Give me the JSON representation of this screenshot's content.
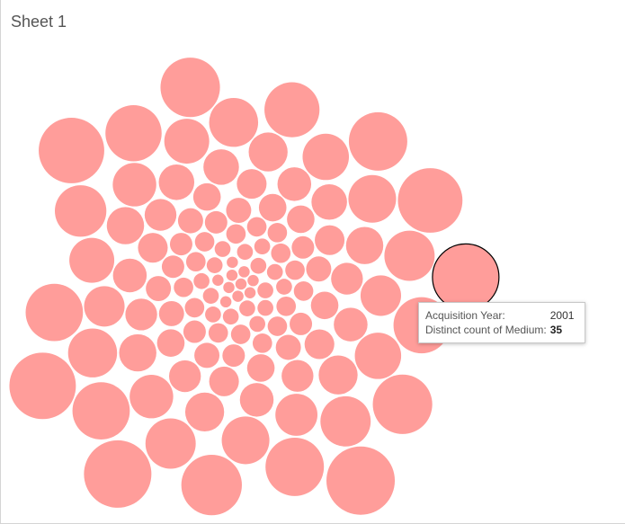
{
  "header": {
    "title": "Sheet 1"
  },
  "chart_data": {
    "type": "bubble",
    "color": "#ff9d9a",
    "values": [
      37,
      36,
      35,
      35,
      34,
      33,
      29,
      28,
      28,
      27,
      27,
      26,
      26,
      25,
      25,
      24,
      21,
      20,
      20,
      20,
      19,
      19,
      18,
      18,
      17,
      17,
      16,
      16,
      15,
      15,
      14,
      13,
      13,
      12,
      12,
      12,
      11,
      11,
      11,
      10,
      10,
      10,
      9,
      9,
      9,
      9,
      8,
      8,
      8,
      8,
      8,
      7,
      7,
      7,
      7,
      7,
      6,
      6,
      6,
      6,
      6,
      6,
      5,
      5,
      5,
      5,
      5,
      5,
      5,
      4,
      4,
      4,
      4,
      4,
      4,
      4,
      3,
      3,
      3,
      3,
      3,
      3,
      3,
      3,
      3,
      3,
      3,
      3,
      3,
      3,
      3,
      2,
      2,
      2,
      2,
      2,
      2,
      2,
      2,
      2,
      2,
      2,
      2,
      2,
      2,
      2,
      1,
      1,
      1,
      1,
      1,
      1,
      1,
      1,
      1,
      1
    ],
    "categories": [
      null,
      null,
      "2001",
      null,
      null,
      null,
      null,
      null,
      null,
      null,
      null,
      null,
      null,
      null,
      null,
      null,
      null,
      null,
      null,
      null,
      null,
      null,
      null,
      null,
      null,
      null,
      null,
      null,
      null,
      null,
      null,
      null,
      null,
      null,
      null,
      null,
      null,
      null,
      null,
      null,
      null,
      null,
      null,
      null,
      null,
      null,
      null,
      null,
      null,
      null,
      null,
      null,
      null,
      null,
      null,
      null,
      null,
      null,
      null,
      null,
      null,
      null,
      null,
      null,
      null,
      null,
      null,
      null,
      null,
      null,
      null,
      null,
      null,
      null,
      null,
      null,
      null,
      null,
      null,
      null,
      null,
      null,
      null,
      null,
      null,
      null,
      null,
      null,
      null,
      null,
      null,
      null,
      null,
      null,
      null,
      null,
      null,
      null,
      null,
      null,
      null,
      null,
      null,
      null,
      null,
      null,
      null,
      null,
      null,
      null,
      null,
      null,
      null,
      null,
      null,
      null
    ],
    "tooltip": {
      "category_label": "Acquisition Year:",
      "value_label": "Distinct count of Medium:"
    }
  }
}
